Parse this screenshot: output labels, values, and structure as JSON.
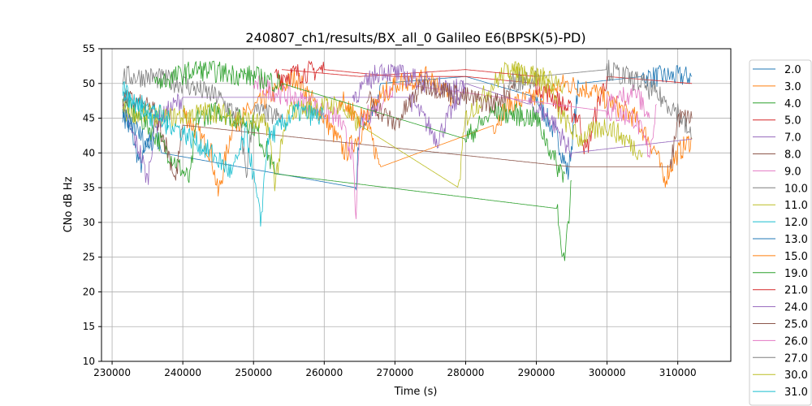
{
  "chart_data": {
    "type": "line",
    "title": "240807_ch1/results/BX_all_0 Galileo E6(BPSK(5)-PD)",
    "xlabel": "Time (s)",
    "ylabel": "CNo dB Hz",
    "xlim": [
      228500,
      317500
    ],
    "ylim": [
      10,
      55
    ],
    "xticks": [
      230000,
      240000,
      250000,
      260000,
      270000,
      280000,
      290000,
      300000,
      310000
    ],
    "yticks": [
      10,
      15,
      20,
      25,
      30,
      35,
      40,
      45,
      50,
      55
    ],
    "grid": true,
    "legend_position": "outside-right",
    "note": "Series are noisy; keypoints are approximate trend values",
    "series": [
      {
        "name": "2.0",
        "color": "#1f77b4",
        "points": [
          [
            231500,
            46
          ],
          [
            233000,
            42
          ],
          [
            234000,
            38
          ],
          [
            236000,
            44
          ],
          [
            237000,
            40
          ],
          [
            264500,
            35
          ],
          [
            265000,
            44
          ],
          [
            267500,
            46
          ],
          [
            268000,
            50
          ],
          [
            280000,
            51
          ],
          [
            290000,
            48
          ],
          [
            293000,
            42
          ],
          [
            294500,
            37
          ],
          [
            296000,
            50
          ],
          [
            305000,
            51
          ],
          [
            312000,
            51
          ]
        ]
      },
      {
        "name": "3.0",
        "color": "#ff7f0e",
        "points": [
          [
            240000,
            46
          ],
          [
            244000,
            40
          ],
          [
            245000,
            34
          ],
          [
            247000,
            44
          ],
          [
            252000,
            48
          ],
          [
            256000,
            51
          ],
          [
            260000,
            45
          ],
          [
            263000,
            40
          ],
          [
            266000,
            44
          ],
          [
            268000,
            38
          ],
          [
            284000,
            44
          ],
          [
            286000,
            47
          ],
          [
            290000,
            48
          ],
          [
            294000,
            50
          ],
          [
            298000,
            49
          ],
          [
            304000,
            45
          ],
          [
            307000,
            40
          ],
          [
            308000,
            36
          ],
          [
            310000,
            40
          ],
          [
            312000,
            42
          ]
        ]
      },
      {
        "name": "4.0",
        "color": "#2ca02c",
        "points": [
          [
            231500,
            47
          ],
          [
            235000,
            44
          ],
          [
            238000,
            40
          ],
          [
            241000,
            36
          ],
          [
            242000,
            45
          ],
          [
            245000,
            46
          ],
          [
            250000,
            44
          ],
          [
            252000,
            40
          ],
          [
            253000,
            37
          ],
          [
            293000,
            32
          ],
          [
            293500,
            27
          ],
          [
            294000,
            24
          ],
          [
            294500,
            30
          ],
          [
            295000,
            36
          ]
        ]
      },
      {
        "name": "5.0",
        "color": "#d62728",
        "points": [
          [
            253000,
            51
          ],
          [
            260000,
            52
          ],
          [
            270000,
            51
          ],
          [
            280000,
            51
          ],
          [
            290000,
            50
          ],
          [
            296000,
            45
          ],
          [
            297000,
            40
          ],
          [
            299000,
            48
          ],
          [
            300000,
            51
          ],
          [
            312000,
            50
          ]
        ]
      },
      {
        "name": "7.0",
        "color": "#9467bd",
        "points": [
          [
            231500,
            46
          ],
          [
            234000,
            40
          ],
          [
            235000,
            36
          ],
          [
            236000,
            44
          ],
          [
            240000,
            48
          ],
          [
            272000,
            48
          ],
          [
            276000,
            42
          ],
          [
            280000,
            50
          ],
          [
            289000,
            47
          ],
          [
            292000,
            45
          ],
          [
            295000,
            40
          ],
          [
            312000,
            42
          ]
        ]
      },
      {
        "name": "8.0",
        "color": "#8c564b",
        "points": [
          [
            231500,
            48
          ],
          [
            236000,
            46
          ],
          [
            238000,
            40
          ],
          [
            239000,
            36
          ],
          [
            240000,
            44
          ],
          [
            295000,
            38
          ],
          [
            309000,
            38
          ],
          [
            310000,
            45
          ],
          [
            312000,
            45
          ]
        ]
      },
      {
        "name": "9.0",
        "color": "#e377c2",
        "points": [
          [
            250000,
            50
          ],
          [
            258000,
            47
          ],
          [
            262000,
            45
          ],
          [
            264000,
            40
          ],
          [
            264500,
            30
          ],
          [
            265000,
            44
          ],
          [
            270000,
            50
          ],
          [
            300000,
            46
          ],
          [
            304000,
            45
          ],
          [
            306000,
            40
          ],
          [
            307000,
            47
          ]
        ]
      },
      {
        "name": "10.0",
        "color": "#7f7f7f",
        "points": [
          [
            231500,
            51
          ],
          [
            235000,
            51
          ],
          [
            240000,
            50
          ],
          [
            245000,
            48
          ],
          [
            248000,
            45
          ],
          [
            249000,
            37
          ],
          [
            250000,
            46
          ],
          [
            254000,
            45
          ]
        ]
      },
      {
        "name": "11.0",
        "color": "#bcbd22",
        "points": [
          [
            231500,
            46
          ],
          [
            238000,
            45
          ],
          [
            244000,
            46
          ],
          [
            252000,
            44
          ],
          [
            253000,
            36
          ],
          [
            255000,
            46
          ],
          [
            262000,
            47
          ],
          [
            265000,
            44
          ],
          [
            279000,
            35
          ],
          [
            280000,
            45
          ],
          [
            284000,
            50
          ],
          [
            286000,
            52
          ],
          [
            292000,
            50
          ],
          [
            293000,
            46
          ],
          [
            296000,
            42
          ],
          [
            300000,
            44
          ],
          [
            305000,
            40
          ]
        ]
      },
      {
        "name": "12.0",
        "color": "#17becf",
        "points": [
          [
            231500,
            48
          ],
          [
            236000,
            46
          ],
          [
            240000,
            43
          ],
          [
            244000,
            40
          ],
          [
            247000,
            37
          ],
          [
            249000,
            43
          ],
          [
            251000,
            30
          ],
          [
            252000,
            42
          ],
          [
            256000,
            46
          ],
          [
            260000,
            45
          ]
        ]
      },
      {
        "name": "13.0",
        "color": "#1f77b4",
        "points": [
          [
            231500,
            45
          ],
          [
            233000,
            44
          ],
          [
            235000,
            41
          ],
          [
            236000,
            42
          ]
        ]
      },
      {
        "name": "15.0",
        "color": "#ff7f0e",
        "points": [
          [
            262000,
            48
          ],
          [
            265000,
            45
          ],
          [
            270000,
            50
          ],
          [
            275000,
            51
          ],
          [
            278000,
            48
          ]
        ]
      },
      {
        "name": "19.0",
        "color": "#2ca02c",
        "points": [
          [
            236000,
            50
          ],
          [
            242000,
            52
          ],
          [
            250000,
            51
          ],
          [
            254000,
            50
          ],
          [
            280000,
            42
          ],
          [
            284000,
            46
          ],
          [
            290000,
            45
          ],
          [
            293000,
            38
          ],
          [
            294000,
            37
          ]
        ]
      },
      {
        "name": "21.0",
        "color": "#d62728",
        "points": [
          [
            254000,
            52
          ],
          [
            265000,
            51
          ],
          [
            280000,
            52
          ],
          [
            290000,
            51
          ]
        ]
      },
      {
        "name": "24.0",
        "color": "#9467bd",
        "points": [
          [
            264000,
            48
          ],
          [
            268000,
            52
          ],
          [
            275000,
            50
          ],
          [
            280000,
            49
          ]
        ]
      },
      {
        "name": "25.0",
        "color": "#8c564b",
        "points": [
          [
            266000,
            48
          ],
          [
            270000,
            44
          ],
          [
            274000,
            50
          ],
          [
            280000,
            48
          ],
          [
            284000,
            47
          ],
          [
            287000,
            50
          ]
        ]
      },
      {
        "name": "26.0",
        "color": "#e377c2",
        "points": [
          [
            300000,
            47
          ],
          [
            304000,
            49
          ],
          [
            306000,
            45
          ]
        ]
      },
      {
        "name": "27.0",
        "color": "#7f7f7f",
        "points": [
          [
            286000,
            50
          ],
          [
            290000,
            51
          ],
          [
            300000,
            52
          ],
          [
            305000,
            50
          ],
          [
            310000,
            46
          ],
          [
            312000,
            42
          ]
        ]
      },
      {
        "name": "30.0",
        "color": "#bcbd22",
        "points": [
          [
            286000,
            52
          ],
          [
            290000,
            51
          ],
          [
            294000,
            50
          ]
        ]
      },
      {
        "name": "31.0",
        "color": "#17becf",
        "points": [
          [
            231500,
            49
          ],
          [
            233000,
            47
          ],
          [
            236000,
            45
          ],
          [
            238000,
            44
          ]
        ]
      }
    ]
  }
}
